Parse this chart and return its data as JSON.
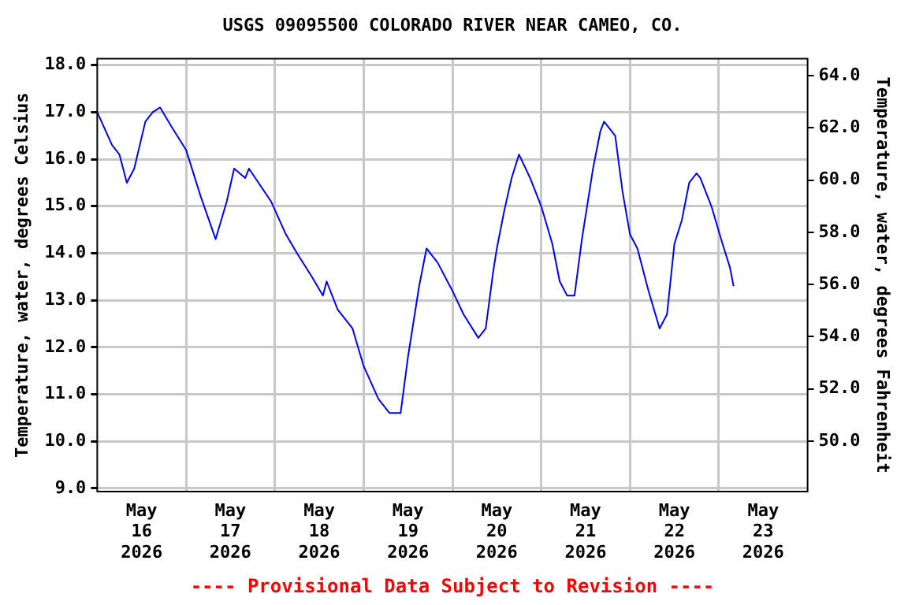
{
  "chart_data": {
    "type": "line",
    "title": "USGS 09095500 COLORADO RIVER NEAR CAMEO, CO.",
    "ylabel": "Temperature, water, degrees Celsius",
    "y2label": "Temperature, water, degrees Fahrenheit",
    "annotations": [
      "---- Provisional Data Subject to Revision ----"
    ],
    "x": [
      "2026-05-16T00:00",
      "2026-05-16T04:00",
      "2026-05-16T06:00",
      "2026-05-16T08:00",
      "2026-05-16T10:00",
      "2026-05-16T13:00",
      "2026-05-16T15:00",
      "2026-05-16T17:00",
      "2026-05-16T20:00",
      "2026-05-17T00:00",
      "2026-05-17T04:00",
      "2026-05-17T08:00",
      "2026-05-17T11:00",
      "2026-05-17T13:00",
      "2026-05-17T16:00",
      "2026-05-17T17:00",
      "2026-05-17T23:00",
      "2026-05-18T03:00",
      "2026-05-18T06:00",
      "2026-05-18T10:00",
      "2026-05-18T13:00",
      "2026-05-18T14:00",
      "2026-05-18T17:00",
      "2026-05-18T21:00",
      "2026-05-19T00:00",
      "2026-05-19T04:00",
      "2026-05-19T07:00",
      "2026-05-19T10:00",
      "2026-05-19T12:00",
      "2026-05-19T15:00",
      "2026-05-19T17:00",
      "2026-05-19T20:00",
      "2026-05-20T00:00",
      "2026-05-20T03:00",
      "2026-05-20T07:00",
      "2026-05-20T09:00",
      "2026-05-20T11:00",
      "2026-05-20T12:00",
      "2026-05-20T14:00",
      "2026-05-20T16:00",
      "2026-05-20T18:00",
      "2026-05-20T21:00",
      "2026-05-21T00:00",
      "2026-05-21T03:00",
      "2026-05-21T05:00",
      "2026-05-21T07:00",
      "2026-05-21T09:00",
      "2026-05-21T11:00",
      "2026-05-21T14:00",
      "2026-05-21T16:00",
      "2026-05-21T17:00",
      "2026-05-21T20:00",
      "2026-05-21T22:00",
      "2026-05-22T00:00",
      "2026-05-22T02:00",
      "2026-05-22T05:00",
      "2026-05-22T08:00",
      "2026-05-22T10:00",
      "2026-05-22T12:00",
      "2026-05-22T14:00",
      "2026-05-22T16:00",
      "2026-05-22T18:00",
      "2026-05-22T19:00",
      "2026-05-22T22:00",
      "2026-05-23T01:00",
      "2026-05-23T03:00",
      "2026-05-23T04:00"
    ],
    "series": [
      {
        "color": "#0000ff",
        "values": [
          17.0,
          16.3,
          16.1,
          15.5,
          15.8,
          16.8,
          17.0,
          17.1,
          16.7,
          16.2,
          15.2,
          14.3,
          15.1,
          15.8,
          15.6,
          15.8,
          15.1,
          14.4,
          14.0,
          13.5,
          13.1,
          13.4,
          12.8,
          12.4,
          11.6,
          10.9,
          10.6,
          10.6,
          11.8,
          13.3,
          14.1,
          13.8,
          13.2,
          12.7,
          12.2,
          12.4,
          13.6,
          14.1,
          14.9,
          15.6,
          16.1,
          15.6,
          15.0,
          14.2,
          13.4,
          13.1,
          13.1,
          14.3,
          15.8,
          16.6,
          16.8,
          16.5,
          15.3,
          14.4,
          14.1,
          13.2,
          12.4,
          12.7,
          14.2,
          14.7,
          15.5,
          15.7,
          15.6,
          15.0,
          14.2,
          13.7,
          13.3
        ]
      }
    ],
    "xlim": [
      "2026-05-16T00:00",
      "2026-05-24T00:00"
    ],
    "xticks": [
      {
        "value": "2026-05-16T12:00",
        "label": "May\n16\n2026"
      },
      {
        "value": "2026-05-17T00:00",
        "label": null
      },
      {
        "value": "2026-05-17T12:00",
        "label": "May\n17\n2026"
      },
      {
        "value": "2026-05-18T00:00",
        "label": null
      },
      {
        "value": "2026-05-18T12:00",
        "label": "May\n18\n2026"
      },
      {
        "value": "2026-05-19T00:00",
        "label": null
      },
      {
        "value": "2026-05-19T12:00",
        "label": "May\n19\n2026"
      },
      {
        "value": "2026-05-20T00:00",
        "label": null
      },
      {
        "value": "2026-05-20T12:00",
        "label": "May\n20\n2026"
      },
      {
        "value": "2026-05-21T00:00",
        "label": null
      },
      {
        "value": "2026-05-21T12:00",
        "label": "May\n21\n2026"
      },
      {
        "value": "2026-05-22T00:00",
        "label": null
      },
      {
        "value": "2026-05-22T12:00",
        "label": "May\n22\n2026"
      },
      {
        "value": "2026-05-23T00:00",
        "label": null
      },
      {
        "value": "2026-05-23T12:00",
        "label": "May\n23\n2026"
      }
    ],
    "ylim": [
      8.93,
      18.14
    ],
    "yticks": [
      {
        "value": 9,
        "label": "9.0"
      },
      {
        "value": 10,
        "label": "10.0"
      },
      {
        "value": 11,
        "label": "11.0"
      },
      {
        "value": 12,
        "label": "12.0"
      },
      {
        "value": 13,
        "label": "13.0"
      },
      {
        "value": 14,
        "label": "14.0"
      },
      {
        "value": 15,
        "label": "15.0"
      },
      {
        "value": 16,
        "label": "16.0"
      },
      {
        "value": 17,
        "label": "17.0"
      },
      {
        "value": 18,
        "label": "18.0"
      }
    ],
    "y2lim": [
      48.07,
      64.65
    ],
    "y2ticks": [
      {
        "value": 50,
        "label": "50.0"
      },
      {
        "value": 52,
        "label": "52.0"
      },
      {
        "value": 54,
        "label": "54.0"
      },
      {
        "value": 56,
        "label": "56.0"
      },
      {
        "value": 58,
        "label": "58.0"
      },
      {
        "value": 60,
        "label": "60.0"
      },
      {
        "value": 62,
        "label": "62.0"
      },
      {
        "value": 64,
        "label": "64.0"
      }
    ],
    "grid": true,
    "legend": false,
    "marker": "none",
    "line_style": "solid"
  }
}
